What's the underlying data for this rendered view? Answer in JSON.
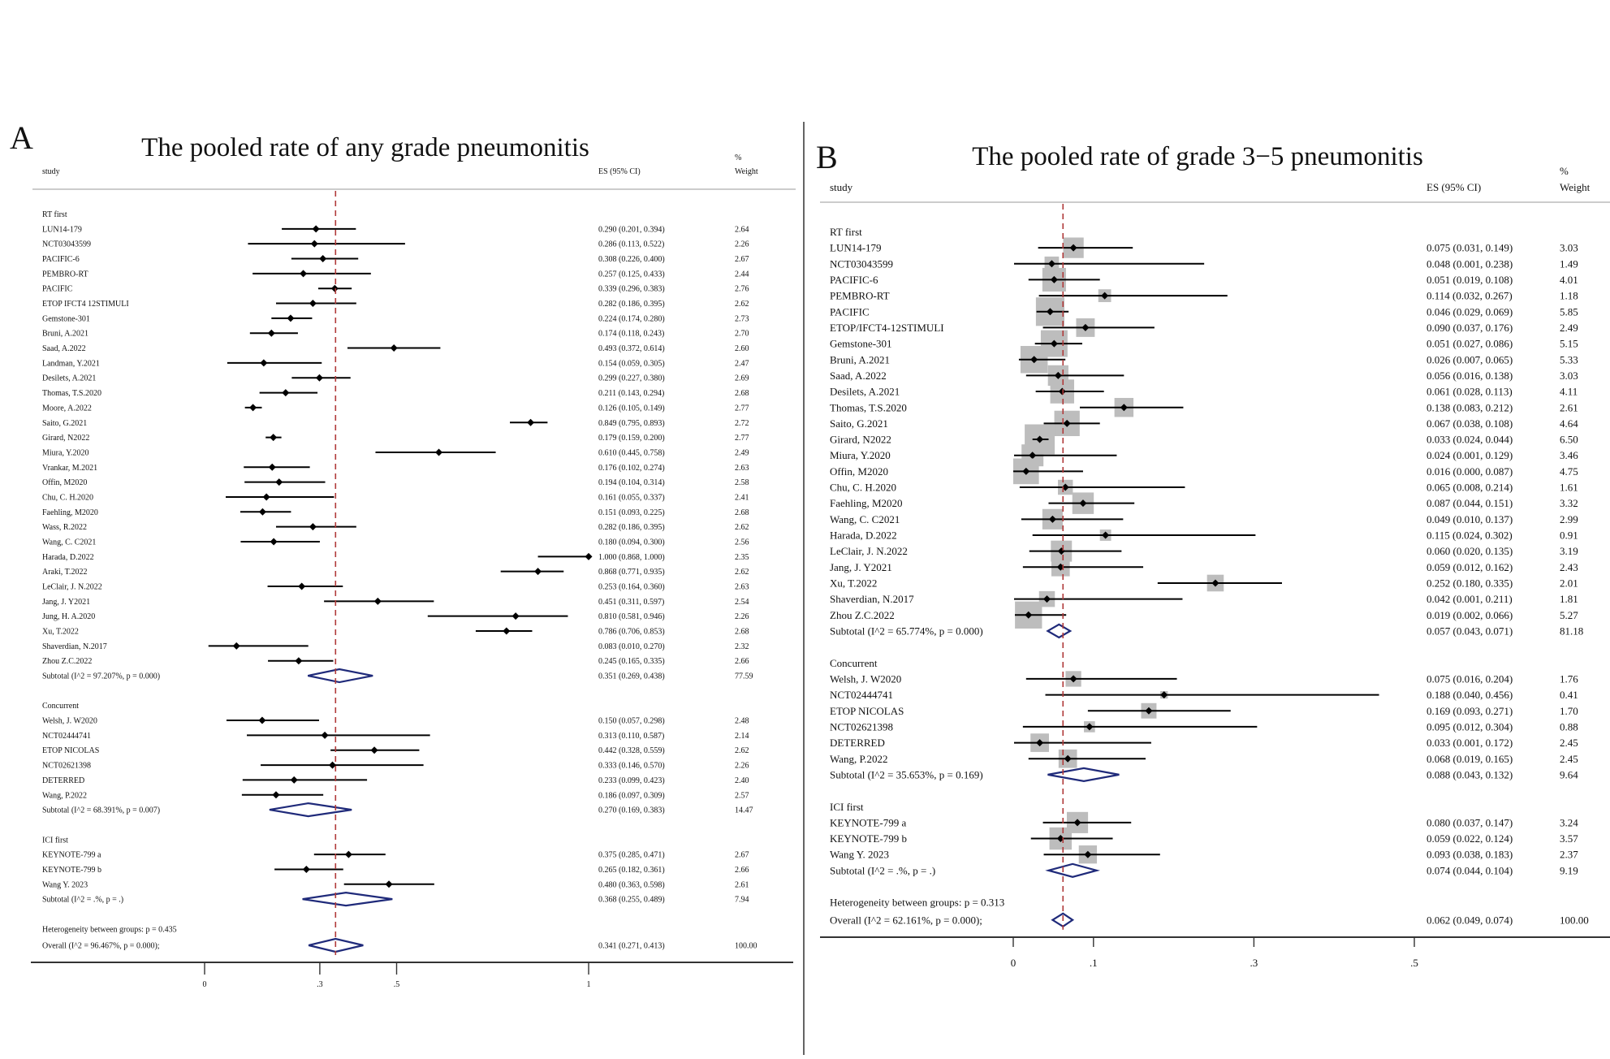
{
  "chart_data": [
    {
      "type": "forest",
      "panel_letter": "A",
      "title": "The pooled rate of any grade pneumonitis",
      "col_study": "study",
      "col_es": "ES (95% CI)",
      "col_w1": "%",
      "col_w2": "Weight",
      "xlim": [
        0,
        1
      ],
      "ticks": [
        {
          "v": 0,
          "t": "0"
        },
        {
          "v": 0.3,
          "t": ".3"
        },
        {
          "v": 0.5,
          "t": ".5"
        },
        {
          "v": 1,
          "t": "1"
        }
      ],
      "ref": 0.341,
      "groups": [
        {
          "name": "RT first",
          "studies": [
            {
              "name": "LUN14-179",
              "es": 0.29,
              "lo": 0.201,
              "hi": 0.394,
              "ci": "0.290 (0.201, 0.394)",
              "w": "2.64"
            },
            {
              "name": "NCT03043599",
              "es": 0.286,
              "lo": 0.113,
              "hi": 0.522,
              "ci": "0.286 (0.113, 0.522)",
              "w": "2.26"
            },
            {
              "name": "PACIFIC-6",
              "es": 0.308,
              "lo": 0.226,
              "hi": 0.4,
              "ci": "0.308 (0.226, 0.400)",
              "w": "2.67"
            },
            {
              "name": "PEMBRO-RT",
              "es": 0.257,
              "lo": 0.125,
              "hi": 0.433,
              "ci": "0.257 (0.125, 0.433)",
              "w": "2.44"
            },
            {
              "name": "PACIFIC",
              "es": 0.339,
              "lo": 0.296,
              "hi": 0.383,
              "ci": "0.339 (0.296, 0.383)",
              "w": "2.76"
            },
            {
              "name": "ETOP IFCT4 12STIMULI",
              "es": 0.282,
              "lo": 0.186,
              "hi": 0.395,
              "ci": "0.282 (0.186, 0.395)",
              "w": "2.62"
            },
            {
              "name": "Gemstone-301",
              "es": 0.224,
              "lo": 0.174,
              "hi": 0.28,
              "ci": "0.224 (0.174, 0.280)",
              "w": "2.73"
            },
            {
              "name": "Bruni, A.2021",
              "es": 0.174,
              "lo": 0.118,
              "hi": 0.243,
              "ci": "0.174 (0.118, 0.243)",
              "w": "2.70"
            },
            {
              "name": "Saad, A.2022",
              "es": 0.493,
              "lo": 0.372,
              "hi": 0.614,
              "ci": "0.493 (0.372, 0.614)",
              "w": "2.60"
            },
            {
              "name": "Landman, Y.2021",
              "es": 0.154,
              "lo": 0.059,
              "hi": 0.305,
              "ci": "0.154 (0.059, 0.305)",
              "w": "2.47"
            },
            {
              "name": "Desilets, A.2021",
              "es": 0.299,
              "lo": 0.227,
              "hi": 0.38,
              "ci": "0.299 (0.227, 0.380)",
              "w": "2.69"
            },
            {
              "name": "Thomas, T.S.2020",
              "es": 0.211,
              "lo": 0.143,
              "hi": 0.294,
              "ci": "0.211 (0.143, 0.294)",
              "w": "2.68"
            },
            {
              "name": "Moore, A.2022",
              "es": 0.126,
              "lo": 0.105,
              "hi": 0.149,
              "ci": "0.126 (0.105, 0.149)",
              "w": "2.77"
            },
            {
              "name": "Saito, G.2021",
              "es": 0.849,
              "lo": 0.795,
              "hi": 0.893,
              "ci": "0.849 (0.795, 0.893)",
              "w": "2.72"
            },
            {
              "name": "Girard, N2022",
              "es": 0.179,
              "lo": 0.159,
              "hi": 0.2,
              "ci": "0.179 (0.159, 0.200)",
              "w": "2.77"
            },
            {
              "name": "Miura, Y.2020",
              "es": 0.61,
              "lo": 0.445,
              "hi": 0.758,
              "ci": "0.610 (0.445, 0.758)",
              "w": "2.49"
            },
            {
              "name": "Vrankar, M.2021",
              "es": 0.176,
              "lo": 0.102,
              "hi": 0.274,
              "ci": "0.176 (0.102, 0.274)",
              "w": "2.63"
            },
            {
              "name": "Offin, M2020",
              "es": 0.194,
              "lo": 0.104,
              "hi": 0.314,
              "ci": "0.194 (0.104, 0.314)",
              "w": "2.58"
            },
            {
              "name": "Chu, C. H.2020",
              "es": 0.161,
              "lo": 0.055,
              "hi": 0.337,
              "ci": "0.161 (0.055, 0.337)",
              "w": "2.41"
            },
            {
              "name": "Faehling, M2020",
              "es": 0.151,
              "lo": 0.093,
              "hi": 0.225,
              "ci": "0.151 (0.093, 0.225)",
              "w": "2.68"
            },
            {
              "name": "Wass, R.2022",
              "es": 0.282,
              "lo": 0.186,
              "hi": 0.395,
              "ci": "0.282 (0.186, 0.395)",
              "w": "2.62"
            },
            {
              "name": "Wang, C. C2021",
              "es": 0.18,
              "lo": 0.094,
              "hi": 0.3,
              "ci": "0.180 (0.094, 0.300)",
              "w": "2.56"
            },
            {
              "name": "Harada, D.2022",
              "es": 1.0,
              "lo": 0.868,
              "hi": 1.0,
              "ci": "1.000 (0.868, 1.000)",
              "w": "2.35"
            },
            {
              "name": "Araki, T.2022",
              "es": 0.868,
              "lo": 0.771,
              "hi": 0.935,
              "ci": "0.868 (0.771, 0.935)",
              "w": "2.62"
            },
            {
              "name": "LeClair, J. N.2022",
              "es": 0.253,
              "lo": 0.164,
              "hi": 0.36,
              "ci": "0.253 (0.164, 0.360)",
              "w": "2.63"
            },
            {
              "name": "Jang, J. Y2021",
              "es": 0.451,
              "lo": 0.311,
              "hi": 0.597,
              "ci": "0.451 (0.311, 0.597)",
              "w": "2.54"
            },
            {
              "name": "Jung, H. A.2020",
              "es": 0.81,
              "lo": 0.581,
              "hi": 0.946,
              "ci": "0.810 (0.581, 0.946)",
              "w": "2.26"
            },
            {
              "name": "Xu, T.2022",
              "es": 0.786,
              "lo": 0.706,
              "hi": 0.853,
              "ci": "0.786 (0.706, 0.853)",
              "w": "2.68"
            },
            {
              "name": "Shaverdian, N.2017",
              "es": 0.083,
              "lo": 0.01,
              "hi": 0.27,
              "ci": "0.083 (0.010, 0.270)",
              "w": "2.32"
            },
            {
              "name": "Zhou Z.C.2022",
              "es": 0.245,
              "lo": 0.165,
              "hi": 0.335,
              "ci": "0.245 (0.165, 0.335)",
              "w": "2.66"
            }
          ],
          "subtotal": {
            "label": "Subtotal  (I^2 = 97.207%, p = 0.000)",
            "es": 0.351,
            "lo": 0.269,
            "hi": 0.438,
            "ci": "0.351 (0.269, 0.438)",
            "w": "77.59"
          }
        },
        {
          "name": "Concurrent",
          "studies": [
            {
              "name": "Welsh, J. W2020",
              "es": 0.15,
              "lo": 0.057,
              "hi": 0.298,
              "ci": "0.150 (0.057, 0.298)",
              "w": "2.48"
            },
            {
              "name": "NCT02444741",
              "es": 0.313,
              "lo": 0.11,
              "hi": 0.587,
              "ci": "0.313 (0.110, 0.587)",
              "w": "2.14"
            },
            {
              "name": "ETOP NICOLAS",
              "es": 0.442,
              "lo": 0.328,
              "hi": 0.559,
              "ci": "0.442 (0.328, 0.559)",
              "w": "2.62"
            },
            {
              "name": "NCT02621398",
              "es": 0.333,
              "lo": 0.146,
              "hi": 0.57,
              "ci": "0.333 (0.146, 0.570)",
              "w": "2.26"
            },
            {
              "name": "DETERRED",
              "es": 0.233,
              "lo": 0.099,
              "hi": 0.423,
              "ci": "0.233 (0.099, 0.423)",
              "w": "2.40"
            },
            {
              "name": "Wang, P.2022",
              "es": 0.186,
              "lo": 0.097,
              "hi": 0.309,
              "ci": "0.186 (0.097, 0.309)",
              "w": "2.57"
            }
          ],
          "subtotal": {
            "label": "Subtotal  (I^2 = 68.391%, p = 0.007)",
            "es": 0.27,
            "lo": 0.169,
            "hi": 0.383,
            "ci": "0.270 (0.169, 0.383)",
            "w": "14.47"
          }
        },
        {
          "name": "ICI first",
          "studies": [
            {
              "name": "KEYNOTE-799 a",
              "es": 0.375,
              "lo": 0.285,
              "hi": 0.471,
              "ci": "0.375 (0.285, 0.471)",
              "w": "2.67"
            },
            {
              "name": "KEYNOTE-799 b",
              "es": 0.265,
              "lo": 0.182,
              "hi": 0.361,
              "ci": "0.265 (0.182, 0.361)",
              "w": "2.66"
            },
            {
              "name": "Wang Y. 2023",
              "es": 0.48,
              "lo": 0.363,
              "hi": 0.598,
              "ci": "0.480 (0.363, 0.598)",
              "w": "2.61"
            }
          ],
          "subtotal": {
            "label": "Subtotal  (I^2 = .%, p = .)",
            "es": 0.368,
            "lo": 0.255,
            "hi": 0.489,
            "ci": "0.368 (0.255, 0.489)",
            "w": "7.94"
          }
        }
      ],
      "heterogeneity": "Heterogeneity between groups: p = 0.435",
      "overall": {
        "label": "Overall  (I^2 = 96.467%, p = 0.000);",
        "es": 0.341,
        "lo": 0.271,
        "hi": 0.413,
        "ci": "0.341 (0.271, 0.413)",
        "w": "100.00"
      }
    },
    {
      "type": "forest",
      "panel_letter": "B",
      "title": "The pooled rate of grade 3−5 pneumonitis",
      "col_study": "study",
      "col_es": "ES (95% CI)",
      "col_w1": "%",
      "col_w2": "Weight",
      "xlim": [
        0,
        0.5
      ],
      "ticks": [
        {
          "v": 0,
          "t": "0"
        },
        {
          "v": 0.1,
          "t": ".1"
        },
        {
          "v": 0.3,
          "t": ".3"
        },
        {
          "v": 0.5,
          "t": ".5"
        }
      ],
      "ref": 0.062,
      "groups": [
        {
          "name": "RT first",
          "studies": [
            {
              "name": "LUN14-179",
              "es": 0.075,
              "lo": 0.031,
              "hi": 0.149,
              "ci": "0.075 (0.031, 0.149)",
              "w": "3.03"
            },
            {
              "name": "NCT03043599",
              "es": 0.048,
              "lo": 0.001,
              "hi": 0.238,
              "ci": "0.048 (0.001, 0.238)",
              "w": "1.49"
            },
            {
              "name": "PACIFIC-6",
              "es": 0.051,
              "lo": 0.019,
              "hi": 0.108,
              "ci": "0.051 (0.019, 0.108)",
              "w": "4.01"
            },
            {
              "name": "PEMBRO-RT",
              "es": 0.114,
              "lo": 0.032,
              "hi": 0.267,
              "ci": "0.114 (0.032, 0.267)",
              "w": "1.18"
            },
            {
              "name": "PACIFIC",
              "es": 0.046,
              "lo": 0.029,
              "hi": 0.069,
              "ci": "0.046 (0.029, 0.069)",
              "w": "5.85"
            },
            {
              "name": "ETOP/IFCT4-12STIMULI",
              "es": 0.09,
              "lo": 0.037,
              "hi": 0.176,
              "ci": "0.090 (0.037, 0.176)",
              "w": "2.49"
            },
            {
              "name": "Gemstone-301",
              "es": 0.051,
              "lo": 0.027,
              "hi": 0.086,
              "ci": "0.051 (0.027, 0.086)",
              "w": "5.15"
            },
            {
              "name": "Bruni, A.2021",
              "es": 0.026,
              "lo": 0.007,
              "hi": 0.065,
              "ci": "0.026 (0.007, 0.065)",
              "w": "5.33"
            },
            {
              "name": "Saad, A.2022",
              "es": 0.056,
              "lo": 0.016,
              "hi": 0.138,
              "ci": "0.056 (0.016, 0.138)",
              "w": "3.03"
            },
            {
              "name": "Desilets, A.2021",
              "es": 0.061,
              "lo": 0.028,
              "hi": 0.113,
              "ci": "0.061 (0.028, 0.113)",
              "w": "4.11"
            },
            {
              "name": "Thomas, T.S.2020",
              "es": 0.138,
              "lo": 0.083,
              "hi": 0.212,
              "ci": "0.138 (0.083, 0.212)",
              "w": "2.61"
            },
            {
              "name": "Saito, G.2021",
              "es": 0.067,
              "lo": 0.038,
              "hi": 0.108,
              "ci": "0.067 (0.038, 0.108)",
              "w": "4.64"
            },
            {
              "name": "Girard, N2022",
              "es": 0.033,
              "lo": 0.024,
              "hi": 0.044,
              "ci": "0.033 (0.024, 0.044)",
              "w": "6.50"
            },
            {
              "name": "Miura, Y.2020",
              "es": 0.024,
              "lo": 0.001,
              "hi": 0.129,
              "ci": "0.024 (0.001, 0.129)",
              "w": "3.46"
            },
            {
              "name": "Offin, M2020",
              "es": 0.016,
              "lo": 0.0,
              "hi": 0.087,
              "ci": "0.016 (0.000, 0.087)",
              "w": "4.75"
            },
            {
              "name": "Chu, C. H.2020",
              "es": 0.065,
              "lo": 0.008,
              "hi": 0.214,
              "ci": "0.065 (0.008, 0.214)",
              "w": "1.61"
            },
            {
              "name": "Faehling, M2020",
              "es": 0.087,
              "lo": 0.044,
              "hi": 0.151,
              "ci": "0.087 (0.044, 0.151)",
              "w": "3.32"
            },
            {
              "name": "Wang, C. C2021",
              "es": 0.049,
              "lo": 0.01,
              "hi": 0.137,
              "ci": "0.049 (0.010, 0.137)",
              "w": "2.99"
            },
            {
              "name": "Harada, D.2022",
              "es": 0.115,
              "lo": 0.024,
              "hi": 0.302,
              "ci": "0.115 (0.024, 0.302)",
              "w": "0.91"
            },
            {
              "name": "LeClair, J. N.2022",
              "es": 0.06,
              "lo": 0.02,
              "hi": 0.135,
              "ci": "0.060 (0.020, 0.135)",
              "w": "3.19"
            },
            {
              "name": "Jang, J. Y2021",
              "es": 0.059,
              "lo": 0.012,
              "hi": 0.162,
              "ci": "0.059 (0.012, 0.162)",
              "w": "2.43"
            },
            {
              "name": "Xu, T.2022",
              "es": 0.252,
              "lo": 0.18,
              "hi": 0.335,
              "ci": "0.252 (0.180, 0.335)",
              "w": "2.01"
            },
            {
              "name": "Shaverdian, N.2017",
              "es": 0.042,
              "lo": 0.001,
              "hi": 0.211,
              "ci": "0.042 (0.001, 0.211)",
              "w": "1.81"
            },
            {
              "name": "Zhou Z.C.2022",
              "es": 0.019,
              "lo": 0.002,
              "hi": 0.066,
              "ci": "0.019 (0.002, 0.066)",
              "w": "5.27"
            }
          ],
          "subtotal": {
            "label": "Subtotal  (I^2 = 65.774%, p = 0.000)",
            "es": 0.057,
            "lo": 0.043,
            "hi": 0.071,
            "ci": "0.057 (0.043, 0.071)",
            "w": "81.18"
          }
        },
        {
          "name": "Concurrent",
          "studies": [
            {
              "name": "Welsh, J. W2020",
              "es": 0.075,
              "lo": 0.016,
              "hi": 0.204,
              "ci": "0.075 (0.016, 0.204)",
              "w": "1.76"
            },
            {
              "name": "NCT02444741",
              "es": 0.188,
              "lo": 0.04,
              "hi": 0.456,
              "ci": "0.188 (0.040, 0.456)",
              "w": "0.41"
            },
            {
              "name": "ETOP NICOLAS",
              "es": 0.169,
              "lo": 0.093,
              "hi": 0.271,
              "ci": "0.169 (0.093, 0.271)",
              "w": "1.70"
            },
            {
              "name": "NCT02621398",
              "es": 0.095,
              "lo": 0.012,
              "hi": 0.304,
              "ci": "0.095 (0.012, 0.304)",
              "w": "0.88"
            },
            {
              "name": "DETERRED",
              "es": 0.033,
              "lo": 0.001,
              "hi": 0.172,
              "ci": "0.033 (0.001, 0.172)",
              "w": "2.45"
            },
            {
              "name": "Wang, P.2022",
              "es": 0.068,
              "lo": 0.019,
              "hi": 0.165,
              "ci": "0.068 (0.019, 0.165)",
              "w": "2.45"
            }
          ],
          "subtotal": {
            "label": "Subtotal  (I^2 = 35.653%, p = 0.169)",
            "es": 0.088,
            "lo": 0.043,
            "hi": 0.132,
            "ci": "0.088 (0.043, 0.132)",
            "w": "9.64"
          }
        },
        {
          "name": "ICI first",
          "studies": [
            {
              "name": "KEYNOTE-799 a",
              "es": 0.08,
              "lo": 0.037,
              "hi": 0.147,
              "ci": "0.080 (0.037, 0.147)",
              "w": "3.24"
            },
            {
              "name": "KEYNOTE-799 b",
              "es": 0.059,
              "lo": 0.022,
              "hi": 0.124,
              "ci": "0.059 (0.022, 0.124)",
              "w": "3.57"
            },
            {
              "name": "Wang Y. 2023",
              "es": 0.093,
              "lo": 0.038,
              "hi": 0.183,
              "ci": "0.093 (0.038, 0.183)",
              "w": "2.37"
            }
          ],
          "subtotal": {
            "label": "Subtotal  (I^2 = .%, p = .)",
            "es": 0.074,
            "lo": 0.044,
            "hi": 0.104,
            "ci": "0.074 (0.044, 0.104)",
            "w": "9.19"
          }
        }
      ],
      "heterogeneity": "Heterogeneity between groups: p = 0.313",
      "overall": {
        "label": "Overall  (I^2 = 62.161%, p = 0.000);",
        "es": 0.062,
        "lo": 0.049,
        "hi": 0.074,
        "ci": "0.062 (0.049, 0.074)",
        "w": "100.00"
      }
    }
  ],
  "colors": {
    "diamond": "#1f2a7a",
    "ref_line": "#b03a3a",
    "box": "#bdbdbd",
    "axis": "#333333"
  }
}
